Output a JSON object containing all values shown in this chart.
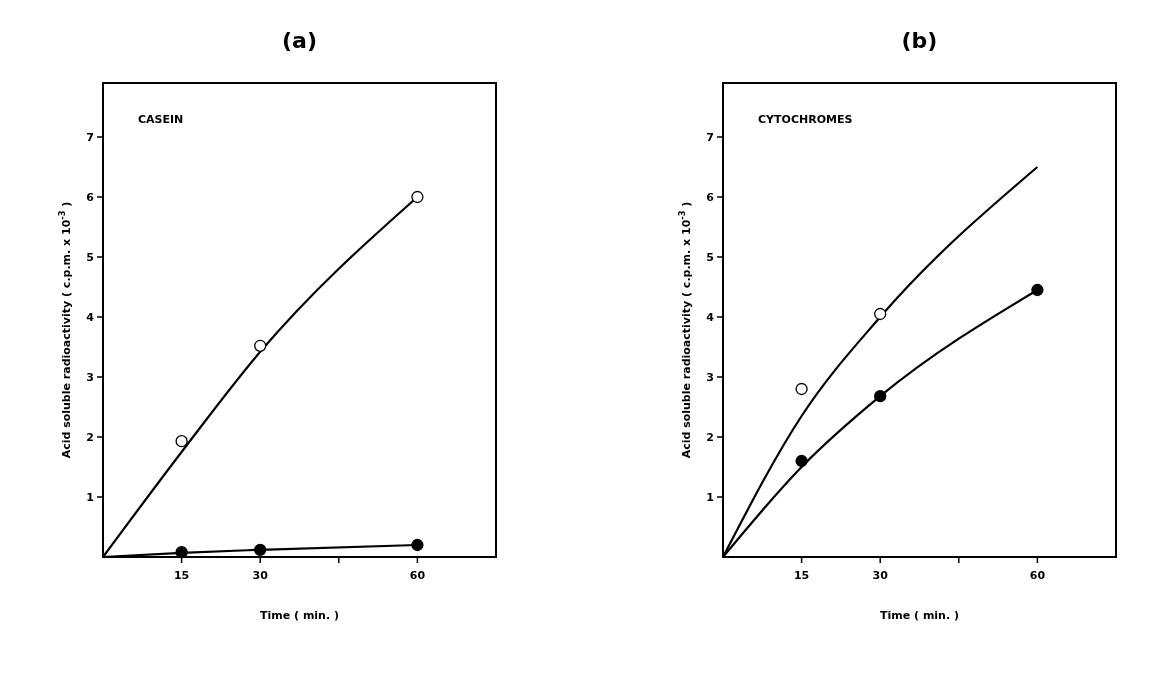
{
  "chart_data": [
    {
      "type": "scatter",
      "title": "(a)",
      "xlabel": "Time  ( min. )",
      "ylabel": "Acid soluble radioactivity   ( c.p.m. x 10$^{-3}$ )",
      "annotations": [
        "CASEIN"
      ],
      "xlim": [
        0,
        75
      ],
      "xticks": [
        15,
        30,
        {
          "value": 45,
          "label": null
        },
        60
      ],
      "ylim": [
        0,
        7.9
      ],
      "yticks": [
        1,
        2,
        3,
        4,
        5,
        6,
        7
      ],
      "marker": "circle",
      "grid": false,
      "series": [
        {
          "type": "line",
          "marker": "none",
          "color": "#000000",
          "x": [
            0,
            15,
            30,
            60
          ],
          "values": [
            0,
            1.75,
            3.42,
            6.0
          ]
        },
        {
          "type": "line",
          "marker": "none",
          "color": "#000000",
          "x": [
            0,
            15,
            30,
            60
          ],
          "values": [
            0,
            0.07,
            0.12,
            0.2
          ]
        },
        {
          "color": "#ffffff",
          "x": [
            15,
            30,
            60
          ],
          "values": [
            1.93,
            3.52,
            6.0
          ]
        },
        {
          "color": "#000000",
          "x": [
            15,
            30,
            60
          ],
          "values": [
            0.08,
            0.12,
            0.2
          ]
        }
      ]
    },
    {
      "type": "scatter",
      "title": "(b)",
      "xlabel": "Time  ( min. )",
      "ylabel": "Acid soluble radioactivity   ( c.p.m. x 10$^{-3}$ )",
      "annotations": [
        "CYTOCHROMES"
      ],
      "xlim": [
        0,
        75
      ],
      "xticks": [
        15,
        30,
        {
          "value": 45,
          "label": null
        },
        60
      ],
      "ylim": [
        0,
        7.9
      ],
      "yticks": [
        1,
        2,
        3,
        4,
        5,
        6,
        7
      ],
      "marker": "circle",
      "grid": false,
      "series": [
        {
          "type": "line",
          "marker": "none",
          "color": "#000000",
          "x": [
            0,
            15,
            30,
            60
          ],
          "values": [
            0,
            2.35,
            4.0,
            6.5
          ]
        },
        {
          "type": "line",
          "marker": "none",
          "color": "#000000",
          "x": [
            0,
            15,
            30,
            60
          ],
          "values": [
            0,
            1.5,
            2.68,
            4.45
          ]
        },
        {
          "color": "#ffffff",
          "x": [
            15,
            30
          ],
          "values": [
            2.8,
            4.05
          ]
        },
        {
          "color": "#000000",
          "x": [
            15,
            30,
            60
          ],
          "values": [
            1.6,
            2.68,
            4.45
          ]
        }
      ]
    }
  ]
}
